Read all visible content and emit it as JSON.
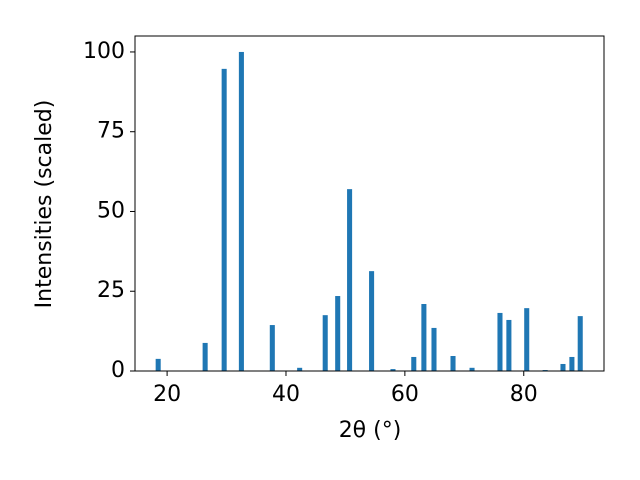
{
  "chart_data": {
    "type": "bar",
    "x": [
      18.5,
      26.4,
      29.6,
      32.5,
      37.7,
      42.3,
      46.6,
      48.7,
      50.7,
      54.4,
      58.0,
      61.5,
      63.2,
      64.9,
      68.1,
      71.3,
      76.0,
      77.5,
      80.5,
      83.6,
      86.6,
      88.1,
      89.5
    ],
    "values": [
      3.8,
      8.8,
      94.7,
      100,
      14.4,
      1.0,
      17.5,
      23.5,
      57,
      31.3,
      0.6,
      4.4,
      21,
      13.5,
      4.7,
      1.0,
      18.2,
      16,
      19.7,
      0.3,
      2.2,
      4.4,
      17.2
    ],
    "color": "#1f77b4",
    "xlabel": "2θ (°)",
    "ylabel": "Intensities (scaled)",
    "xlim": [
      14.6,
      93.5
    ],
    "xticks": [
      20,
      40,
      60,
      80
    ],
    "ylim": [
      0,
      105
    ],
    "yticks": [
      0,
      25,
      50,
      75,
      100
    ],
    "grid": false
  }
}
